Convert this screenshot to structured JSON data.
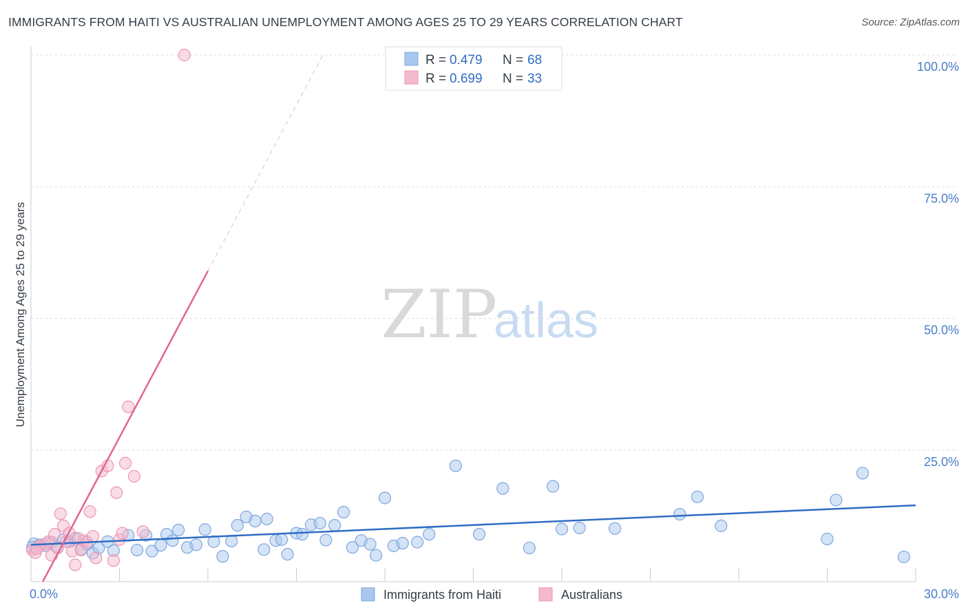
{
  "title": "IMMIGRANTS FROM HAITI VS AUSTRALIAN UNEMPLOYMENT AMONG AGES 25 TO 29 YEARS CORRELATION CHART",
  "source": "Source: ZipAtlas.com",
  "watermark": {
    "zip": "ZIP",
    "atlas": "atlas"
  },
  "legend": {
    "rows": [
      {
        "r_label": "R =",
        "r_value": "0.479",
        "n_label": "N =",
        "n_value": "68",
        "color": "#a9c7ee"
      },
      {
        "r_label": "R =",
        "r_value": "0.699",
        "n_label": "N =",
        "n_value": "33",
        "color": "#f4b9cc"
      }
    ]
  },
  "bottom_legend": [
    {
      "label": "Immigrants from Haiti",
      "color": "#a9c7ee"
    },
    {
      "label": "Australians",
      "color": "#f4b9cc"
    }
  ],
  "colors": {
    "blue": "#2f6cc4",
    "blue_fill": "#a9c7ee",
    "pink": "#e0668f",
    "pink_fill": "#f4b9cc",
    "tick_label": "#4a7cc9"
  },
  "chart_data": {
    "type": "scatter",
    "xlabel": "",
    "ylabel": "Unemployment Among Ages 25 to 29 years",
    "x_tick_labels": [
      "0.0%",
      "30.0%"
    ],
    "y_tick_labels": [
      "100.0%",
      "75.0%",
      "50.0%",
      "25.0%"
    ],
    "y_ticks": [
      100,
      75,
      50,
      25
    ],
    "xlim": [
      0,
      30
    ],
    "ylim": [
      0,
      100
    ],
    "series": [
      {
        "name": "Immigrants from Haiti",
        "color": "#a9c7ee",
        "points": [
          [
            0.1,
            7.2
          ],
          [
            0.3,
            7.0
          ],
          [
            0.5,
            6.8
          ],
          [
            0.7,
            7.5
          ],
          [
            0.9,
            6.5
          ],
          [
            1.1,
            8.0
          ],
          [
            1.3,
            7.6
          ],
          [
            1.5,
            8.2
          ],
          [
            1.7,
            6.2
          ],
          [
            1.9,
            7.1
          ],
          [
            2.1,
            5.4
          ],
          [
            2.3,
            6.4
          ],
          [
            2.6,
            7.6
          ],
          [
            2.8,
            5.9
          ],
          [
            3.3,
            8.8
          ],
          [
            3.6,
            6.0
          ],
          [
            3.9,
            8.8
          ],
          [
            4.1,
            5.8
          ],
          [
            4.4,
            6.9
          ],
          [
            4.6,
            9.0
          ],
          [
            4.8,
            7.8
          ],
          [
            5.0,
            9.8
          ],
          [
            5.3,
            6.5
          ],
          [
            5.6,
            7.0
          ],
          [
            5.9,
            9.9
          ],
          [
            6.2,
            7.6
          ],
          [
            6.5,
            4.8
          ],
          [
            6.8,
            7.7
          ],
          [
            7.0,
            10.7
          ],
          [
            7.3,
            12.3
          ],
          [
            7.6,
            11.5
          ],
          [
            7.9,
            6.1
          ],
          [
            8.0,
            11.9
          ],
          [
            8.3,
            7.8
          ],
          [
            8.5,
            8.0
          ],
          [
            8.7,
            5.2
          ],
          [
            9.0,
            9.2
          ],
          [
            9.2,
            9.0
          ],
          [
            9.5,
            10.8
          ],
          [
            9.8,
            11.1
          ],
          [
            10.0,
            7.9
          ],
          [
            10.3,
            10.7
          ],
          [
            10.6,
            13.2
          ],
          [
            10.9,
            6.5
          ],
          [
            11.2,
            7.8
          ],
          [
            11.5,
            7.1
          ],
          [
            11.7,
            5.0
          ],
          [
            12.0,
            15.9
          ],
          [
            12.3,
            6.8
          ],
          [
            12.6,
            7.3
          ],
          [
            13.1,
            7.5
          ],
          [
            13.5,
            9.0
          ],
          [
            14.4,
            22.0
          ],
          [
            15.2,
            9.0
          ],
          [
            16.0,
            17.7
          ],
          [
            16.9,
            6.4
          ],
          [
            17.7,
            18.1
          ],
          [
            18.0,
            10.0
          ],
          [
            18.6,
            10.2
          ],
          [
            19.8,
            10.1
          ],
          [
            22.0,
            12.8
          ],
          [
            22.6,
            16.1
          ],
          [
            23.4,
            10.6
          ],
          [
            27.0,
            8.1
          ],
          [
            27.3,
            15.5
          ],
          [
            28.2,
            20.6
          ],
          [
            29.6,
            4.7
          ],
          [
            0.05,
            6.5
          ]
        ]
      },
      {
        "name": "Australians",
        "color": "#f4b9cc",
        "points": [
          [
            0.05,
            6.0
          ],
          [
            0.15,
            5.5
          ],
          [
            0.3,
            6.8
          ],
          [
            0.5,
            7.2
          ],
          [
            0.6,
            7.6
          ],
          [
            0.7,
            5.0
          ],
          [
            0.8,
            9.0
          ],
          [
            0.9,
            6.4
          ],
          [
            1.0,
            12.9
          ],
          [
            1.1,
            10.6
          ],
          [
            1.2,
            7.6
          ],
          [
            1.3,
            9.2
          ],
          [
            1.4,
            5.8
          ],
          [
            1.5,
            3.2
          ],
          [
            1.6,
            8.2
          ],
          [
            1.7,
            6.0
          ],
          [
            1.8,
            7.8
          ],
          [
            1.9,
            7.5
          ],
          [
            2.0,
            13.3
          ],
          [
            2.1,
            8.6
          ],
          [
            2.2,
            4.5
          ],
          [
            2.4,
            21.0
          ],
          [
            2.6,
            22.0
          ],
          [
            2.8,
            4.0
          ],
          [
            2.9,
            16.9
          ],
          [
            3.0,
            8.0
          ],
          [
            3.1,
            9.2
          ],
          [
            3.2,
            22.5
          ],
          [
            3.3,
            33.2
          ],
          [
            3.5,
            20.0
          ],
          [
            3.8,
            9.5
          ],
          [
            5.2,
            100.0
          ],
          [
            0.2,
            6.3
          ]
        ]
      }
    ],
    "trendlines": [
      {
        "series": "Immigrants from Haiti",
        "x": [
          0.0,
          30.0
        ],
        "y": [
          7.0,
          14.5
        ],
        "style": "solid"
      },
      {
        "series": "Australians",
        "x": [
          0.4,
          6.0
        ],
        "y": [
          0.0,
          59.0
        ],
        "style": "solid"
      },
      {
        "series": "Australians",
        "x": [
          6.0,
          9.9
        ],
        "y": [
          59.0,
          100.0
        ],
        "style": "dashed"
      }
    ]
  }
}
